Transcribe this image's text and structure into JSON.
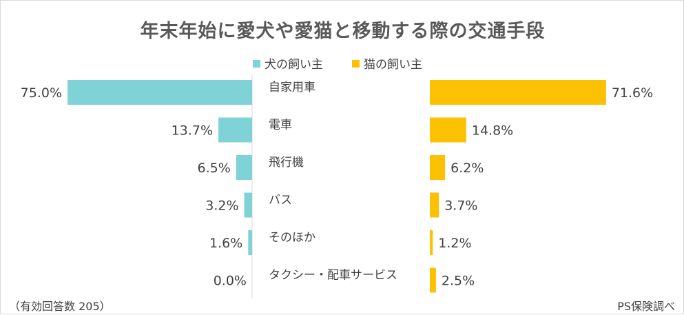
{
  "colors": {
    "dog": "#7fd3d6",
    "cat": "#fbc102",
    "divider": "#d9d9d9"
  },
  "chart_data": {
    "type": "bar",
    "orientation": "horizontal-butterfly",
    "title": "年末年始に愛犬や愛猫と移動する際の交通手段",
    "categories": [
      "自家用車",
      "電車",
      "飛行機",
      "バス",
      "そのほか",
      "タクシー・配車サービス"
    ],
    "series": [
      {
        "name": "犬の飼い主",
        "values": [
          75.0,
          13.7,
          6.5,
          3.2,
          1.6,
          0.0
        ],
        "labels": [
          "75.0%",
          "13.7%",
          "6.5%",
          "3.2%",
          "1.6%",
          "0.0%"
        ]
      },
      {
        "name": "猫の飼い主",
        "values": [
          71.6,
          14.8,
          6.2,
          3.7,
          1.2,
          2.5
        ],
        "labels": [
          "71.6%",
          "14.8%",
          "6.2%",
          "3.7%",
          "1.2%",
          "2.5%"
        ]
      }
    ],
    "unit": "%",
    "xlim": [
      0,
      75
    ],
    "note": "（有効回答数 205）",
    "source": "PS保険調べ"
  }
}
